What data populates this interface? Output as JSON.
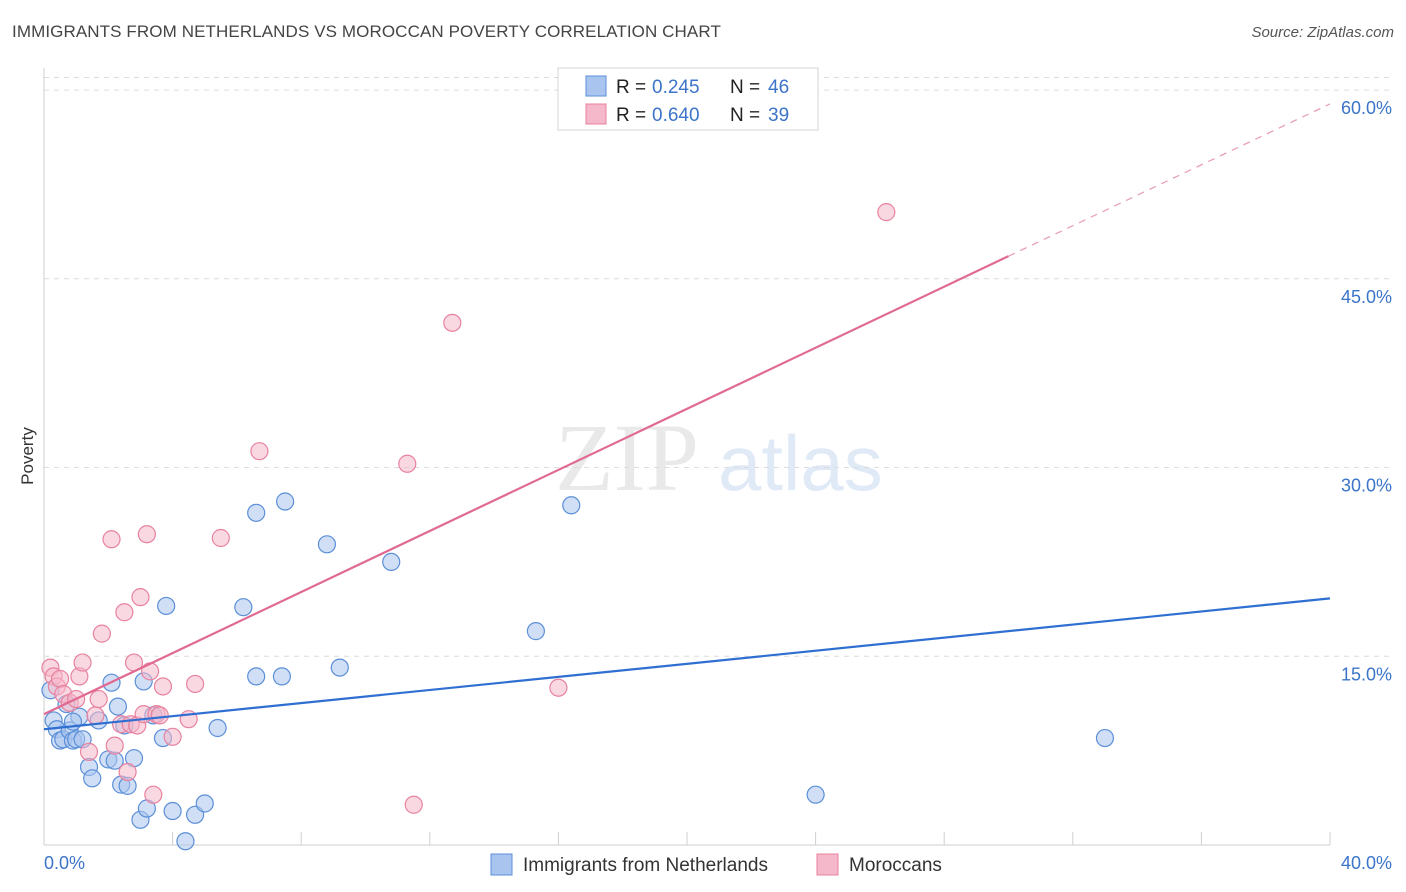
{
  "header": {
    "title": "IMMIGRANTS FROM NETHERLANDS VS MOROCCAN POVERTY CORRELATION CHART",
    "source": "Source: ZipAtlas.com"
  },
  "watermark": {
    "zip": "ZIP",
    "atlas": "atlas"
  },
  "chart_data": {
    "type": "scatter",
    "ylabel": "Poverty",
    "x_tick_labels": [
      "0.0%",
      "40.0%"
    ],
    "y_tick_labels": [
      "15.0%",
      "30.0%",
      "45.0%",
      "60.0%"
    ],
    "y_ticks": [
      15,
      30,
      45,
      60
    ],
    "xlim": [
      0,
      40
    ],
    "ylim": [
      0,
      61
    ],
    "grid": true,
    "legend_position": "top-center",
    "series": [
      {
        "name": "Immigrants from Netherlands",
        "color": "#5b8fd8",
        "fill": "#a9c5ef",
        "R": "0.245",
        "N": "46",
        "trend": {
          "x0": 0,
          "y0": 9.2,
          "x1": 40,
          "y1": 19.6
        },
        "points": [
          [
            0.2,
            12.3
          ],
          [
            0.3,
            9.9
          ],
          [
            0.4,
            9.2
          ],
          [
            0.5,
            8.3
          ],
          [
            0.6,
            8.4
          ],
          [
            0.7,
            11.2
          ],
          [
            0.8,
            9.1
          ],
          [
            0.9,
            8.3
          ],
          [
            1.0,
            8.4
          ],
          [
            1.1,
            10.2
          ],
          [
            1.2,
            8.4
          ],
          [
            1.4,
            6.2
          ],
          [
            1.5,
            5.3
          ],
          [
            1.7,
            9.9
          ],
          [
            2.0,
            6.8
          ],
          [
            2.1,
            12.9
          ],
          [
            2.2,
            6.7
          ],
          [
            2.3,
            11.0
          ],
          [
            2.4,
            4.8
          ],
          [
            2.6,
            4.7
          ],
          [
            2.8,
            6.9
          ],
          [
            3.0,
            2.0
          ],
          [
            3.1,
            13.0
          ],
          [
            3.2,
            2.9
          ],
          [
            3.4,
            10.3
          ],
          [
            3.7,
            8.5
          ],
          [
            3.8,
            19.0
          ],
          [
            4.0,
            2.7
          ],
          [
            4.4,
            0.3
          ],
          [
            4.7,
            2.4
          ],
          [
            5.0,
            3.3
          ],
          [
            5.4,
            9.3
          ],
          [
            6.2,
            18.9
          ],
          [
            6.6,
            26.4
          ],
          [
            6.6,
            13.4
          ],
          [
            7.4,
            13.4
          ],
          [
            7.5,
            27.3
          ],
          [
            8.8,
            23.9
          ],
          [
            9.2,
            14.1
          ],
          [
            10.8,
            22.5
          ],
          [
            15.3,
            17.0
          ],
          [
            16.4,
            27.0
          ],
          [
            24.0,
            4.0
          ],
          [
            33.0,
            8.5
          ],
          [
            0.9,
            9.8
          ],
          [
            2.5,
            9.5
          ]
        ]
      },
      {
        "name": "Moroccans",
        "color": "#e8829f",
        "fill": "#f5b8ca",
        "R": "0.640",
        "N": "39",
        "trend": {
          "x0": 0,
          "y0": 10.4,
          "x1": 30,
          "y1": 46.8
        },
        "trend_dashed": {
          "x0": 30,
          "y0": 46.8,
          "x1": 40,
          "y1": 58.9
        },
        "points": [
          [
            0.2,
            14.1
          ],
          [
            0.3,
            13.4
          ],
          [
            0.4,
            12.6
          ],
          [
            0.5,
            13.2
          ],
          [
            0.6,
            12.0
          ],
          [
            0.8,
            11.3
          ],
          [
            1.0,
            11.6
          ],
          [
            1.1,
            13.4
          ],
          [
            1.2,
            14.5
          ],
          [
            1.4,
            7.4
          ],
          [
            1.6,
            10.3
          ],
          [
            1.7,
            11.6
          ],
          [
            1.8,
            16.8
          ],
          [
            2.1,
            24.3
          ],
          [
            2.2,
            7.9
          ],
          [
            2.4,
            9.6
          ],
          [
            2.5,
            18.5
          ],
          [
            2.6,
            5.8
          ],
          [
            2.7,
            9.6
          ],
          [
            2.8,
            14.5
          ],
          [
            2.9,
            9.5
          ],
          [
            3.0,
            19.7
          ],
          [
            3.1,
            10.4
          ],
          [
            3.2,
            24.7
          ],
          [
            3.3,
            13.8
          ],
          [
            3.4,
            4.0
          ],
          [
            3.5,
            10.4
          ],
          [
            3.6,
            10.3
          ],
          [
            3.7,
            12.6
          ],
          [
            4.0,
            8.6
          ],
          [
            4.5,
            10.0
          ],
          [
            4.7,
            12.8
          ],
          [
            5.5,
            24.4
          ],
          [
            6.7,
            31.3
          ],
          [
            11.3,
            30.3
          ],
          [
            11.5,
            3.2
          ],
          [
            12.7,
            41.5
          ],
          [
            16.0,
            12.5
          ],
          [
            26.2,
            50.3
          ]
        ]
      }
    ]
  },
  "bottom_legend": [
    "Immigrants from Netherlands",
    "Moroccans"
  ],
  "legend_labels": {
    "r": "R =",
    "n": "N ="
  }
}
